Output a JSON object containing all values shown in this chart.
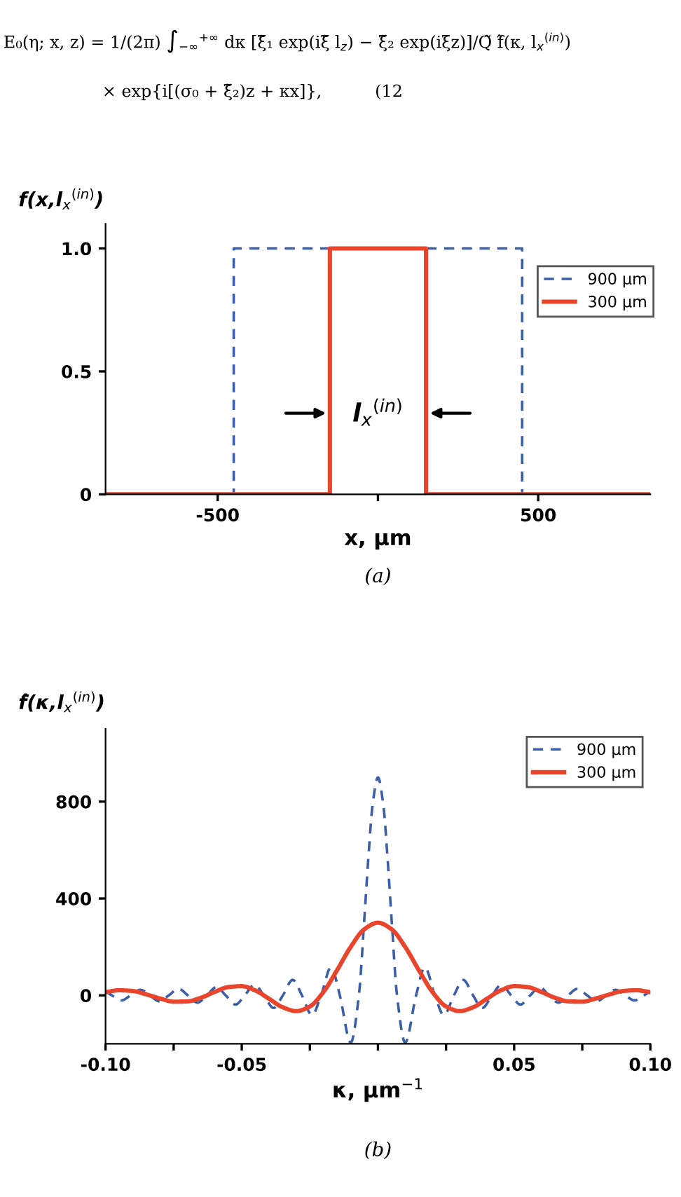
{
  "chart_data": [
    {
      "type": "line",
      "title": "E₀(η; x, z) = 1/(2π) ∫$_{−∞}$$^{+∞}$ dκ [ξ̃₁ exp(iξ̃ l$_{z}$) − ξ̃₂ exp(iξz)]/Q̃ f̂(κ, l$_{x}$$^{(in)}$)",
      "subtitle": "× exp{i[(σ₀ + ξ̃₂)z + κx]},          (12",
      "xlabel": "x, μm",
      "ylabel": "f(x,l$_{x}$$^{(in)}$)",
      "xlim": [
        -850,
        850
      ],
      "ylim": [
        0,
        1.1
      ],
      "xticks": [
        {
          "value": -500,
          "label": "-500"
        },
        {
          "value": 0,
          "label": null
        },
        500
      ],
      "yticks": [
        0,
        0.5,
        {
          "value": 1,
          "label": "1.0"
        }
      ],
      "legend": "right",
      "series": [
        {
          "name": "900 μm",
          "color": "#3a5fa8",
          "line_style": "dashed",
          "x": [
            -850,
            -450,
            -450,
            450,
            450,
            850
          ],
          "values": [
            0,
            0,
            1,
            1,
            0,
            0
          ]
        },
        {
          "name": "300 μm",
          "color": "#e8452c",
          "line_style": "solid",
          "x": [
            -850,
            -150,
            -150,
            150,
            150,
            850
          ],
          "values": [
            0,
            0,
            1,
            1,
            0,
            0
          ]
        }
      ],
      "annotations": [
        "l$_{x}$$^{(in)}$",
        "(a)"
      ]
    },
    {
      "type": "line",
      "xlabel": "κ, μm$^{−1}$",
      "ylabel": "f̂(κ,l$_{x}$$^{(in)}$)",
      "xlim": [
        -0.1,
        0.1
      ],
      "ylim": [
        -200,
        1100
      ],
      "xticks": [
        {
          "value": -0.1,
          "label": "-0.10"
        },
        {
          "value": -0.075,
          "label": null
        },
        {
          "value": -0.05,
          "label": "-0.05"
        },
        {
          "value": -0.025,
          "label": null
        },
        {
          "value": 0,
          "label": null
        },
        {
          "value": 0.025,
          "label": null
        },
        0.05,
        {
          "value": 0.075,
          "label": null
        },
        {
          "value": 0.1,
          "label": "0.10"
        }
      ],
      "yticks": [
        0,
        400,
        800
      ],
      "legend": "top right",
      "series": [
        {
          "name": "900 μm",
          "color": "#3a5fa8",
          "line_style": "dashed",
          "x": [
            -0.1,
            -0.0977,
            -0.0942,
            -0.0908,
            -0.0872,
            -0.0838,
            -0.0802,
            -0.0768,
            -0.0732,
            -0.0698,
            -0.0663,
            -0.0628,
            -0.0593,
            -0.0559,
            -0.0523,
            -0.0489,
            -0.0453,
            -0.0419,
            -0.0383,
            -0.0349,
            -0.0313,
            -0.0279,
            -0.0242,
            -0.0209,
            -0.0172,
            -0.014,
            -0.01,
            -0.007,
            -0.005,
            -0.0035,
            -0.002,
            0,
            0.002,
            0.0035,
            0.005,
            0.007,
            0.01,
            0.014,
            0.0172,
            0.0209,
            0.0242,
            0.0279,
            0.0313,
            0.0349,
            0.0383,
            0.0419,
            0.0453,
            0.0489,
            0.0523,
            0.0559,
            0.0593,
            0.0628,
            0.0663,
            0.0698,
            0.0732,
            0.0768,
            0.0802,
            0.0838,
            0.0872,
            0.0908,
            0.0942,
            0.0977,
            0.1
          ],
          "values": [
            17,
            0,
            -21,
            0,
            23,
            0,
            -25,
            0,
            27,
            0,
            -30,
            0,
            34,
            0,
            -38,
            0,
            44,
            0,
            -52,
            0,
            64,
            0,
            -82,
            0,
            116,
            0,
            -195,
            0,
            315,
            571,
            783,
            900,
            783,
            571,
            315,
            0,
            -195,
            0,
            116,
            0,
            -82,
            0,
            64,
            0,
            -52,
            0,
            44,
            0,
            -38,
            0,
            34,
            0,
            -30,
            0,
            27,
            0,
            -25,
            0,
            23,
            0,
            -21,
            0,
            17
          ]
        },
        {
          "name": "300 μm",
          "color": "#e8452c",
          "line_style": "solid",
          "x": [
            -0.1,
            -0.095,
            -0.09,
            -0.085,
            -0.08,
            -0.075,
            -0.07,
            -0.065,
            -0.06,
            -0.055,
            -0.05,
            -0.045,
            -0.04,
            -0.035,
            -0.03,
            -0.025,
            -0.02,
            -0.015,
            -0.01,
            -0.005,
            0,
            0.005,
            0.01,
            0.015,
            0.02,
            0.025,
            0.03,
            0.035,
            0.04,
            0.045,
            0.05,
            0.055,
            0.06,
            0.065,
            0.07,
            0.075,
            0.08,
            0.085,
            0.09,
            0.095,
            0.1
          ],
          "values": [
            13,
            21,
            18,
            4,
            -13,
            -26,
            -25,
            -10,
            14,
            34,
            38,
            20,
            -14,
            -49,
            -65,
            -46,
            14,
            104,
            200,
            273,
            300,
            273,
            200,
            104,
            14,
            -46,
            -65,
            -49,
            -14,
            20,
            38,
            34,
            14,
            -10,
            -25,
            -26,
            -13,
            4,
            18,
            21,
            13
          ]
        }
      ],
      "annotations": [
        "(b)"
      ]
    }
  ]
}
